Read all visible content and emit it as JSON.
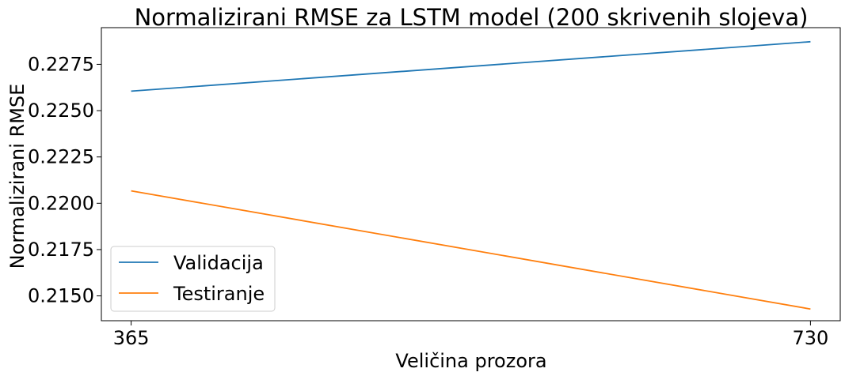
{
  "chart_data": {
    "type": "line",
    "title": "Normalizirani RMSE za LSTM model (200 skrivenih slojeva)",
    "xlabel": "Veličina prozora",
    "ylabel": "Normalizirani RMSE",
    "x": [
      365,
      730
    ],
    "x_tick_labels": [
      "365",
      "730"
    ],
    "y_ticks": [
      0.215,
      0.2175,
      0.22,
      0.2225,
      0.225,
      0.2275
    ],
    "y_tick_labels": [
      "0.2150",
      "0.2175",
      "0.2200",
      "0.2225",
      "0.2250",
      "0.2275"
    ],
    "ylim": [
      0.21366,
      0.22948
    ],
    "xlim": [
      349,
      746
    ],
    "grid": false,
    "legend_position": "lower-left",
    "series": [
      {
        "name": "Validacija",
        "color": "#1f77b4",
        "values": [
          0.22605,
          0.22872
        ]
      },
      {
        "name": "Testiranje",
        "color": "#ff7f0e",
        "values": [
          0.22067,
          0.21429
        ]
      }
    ]
  }
}
